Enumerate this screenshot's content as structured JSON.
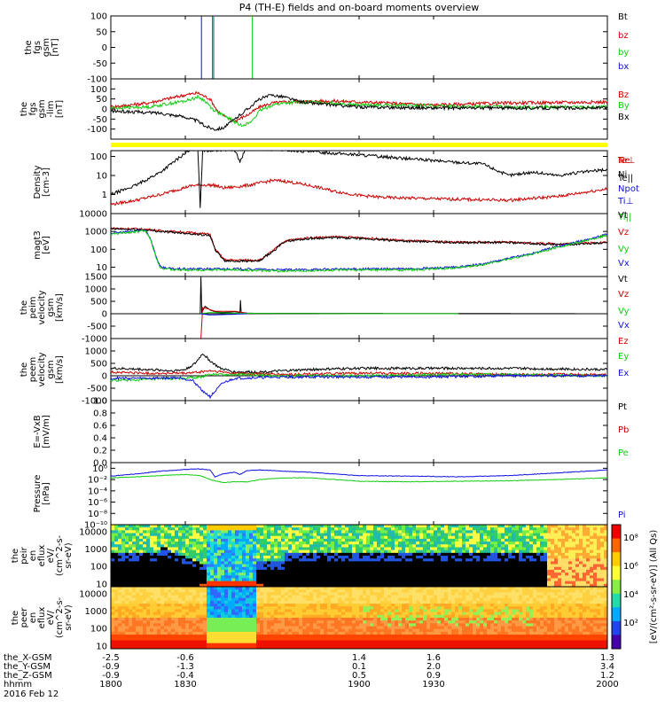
{
  "title": "P4 (TH-E) fields and on-board moments overview",
  "colors": {
    "black": "#000000",
    "red": "#cc0000",
    "green": "#11cc11",
    "blue": "#1010dd",
    "yellow": "#ffff00"
  },
  "chart_data": [
    {
      "type": "line",
      "panel": "fgs_gsm",
      "ylabel": [
        "the",
        "fgs",
        "gsm",
        "[nT]"
      ],
      "ylim": [
        -100,
        100
      ],
      "yticks": [
        "100",
        "50",
        "0",
        "-50",
        "-100"
      ],
      "series": [
        {
          "name": "Bt",
          "color": "#000000"
        },
        {
          "name": "bz",
          "color": "#cc0000"
        },
        {
          "name": "by",
          "color": "#11cc11"
        },
        {
          "name": "bx",
          "color": "#1010dd",
          "x": [
            1800,
            1836.5,
            1836.5,
            1838,
            1838,
            1840.5,
            1840.5,
            1841,
            1841
          ],
          "y": [
            -120,
            -120,
            120,
            120,
            120,
            120,
            120,
            120,
            -120
          ]
        }
      ],
      "extra_lines": [
        {
          "color": "#11cc11",
          "x": [
            1841.5,
            1841.5,
            1842
          ],
          "y": [
            120,
            -100,
            -120
          ]
        },
        {
          "color": "#11cc11",
          "x": [
            1857,
            1857,
            1857.5
          ],
          "y": [
            120,
            -100,
            -120
          ]
        }
      ]
    },
    {
      "type": "line",
      "panel": "fgs_gsm_lim",
      "ylabel": [
        "the",
        "fgs",
        "gsm",
        "-lim",
        "[nT]"
      ],
      "ylim": [
        -150,
        150
      ],
      "yticks": [
        "100",
        "50",
        "0",
        "-50",
        "-100"
      ],
      "series": [
        {
          "name": "Bz",
          "color": "#cc0000",
          "x": [
            1800,
            1815,
            1830,
            1835,
            1840,
            1843,
            1846,
            1850,
            1855,
            1860,
            1865,
            1870,
            1880,
            1890,
            1900,
            1930,
            1960,
            2000
          ],
          "y": [
            10,
            30,
            70,
            80,
            50,
            -10,
            -40,
            -60,
            -30,
            10,
            30,
            35,
            38,
            40,
            35,
            20,
            30,
            35
          ]
        },
        {
          "name": "By",
          "color": "#11cc11",
          "x": [
            1800,
            1815,
            1830,
            1835,
            1838,
            1841,
            1845,
            1848,
            1852,
            1856,
            1860,
            1865,
            1870,
            1880,
            1890,
            1900,
            1930,
            1960,
            2000
          ],
          "y": [
            5,
            10,
            40,
            60,
            40,
            0,
            -30,
            -50,
            -80,
            -70,
            -10,
            20,
            30,
            35,
            30,
            20,
            15,
            10,
            10
          ]
        },
        {
          "name": "Bx",
          "color": "#000000",
          "x": [
            1800,
            1810,
            1820,
            1830,
            1835,
            1838,
            1842,
            1845,
            1848,
            1852,
            1856,
            1860,
            1865,
            1870,
            1875,
            1880,
            1890,
            1900,
            1930,
            1960,
            2000
          ],
          "y": [
            -10,
            -15,
            -20,
            -40,
            -60,
            -85,
            -100,
            -95,
            -70,
            -30,
            10,
            50,
            70,
            60,
            40,
            30,
            20,
            10,
            5,
            5,
            5
          ]
        }
      ],
      "legend": [
        "Bz",
        "By",
        "Bx"
      ]
    },
    {
      "type": "line",
      "panel": "density",
      "ylabel": [
        "Density",
        "[cm-3]"
      ],
      "yscale": "log",
      "ylim": [
        0.1,
        200
      ],
      "yticks": [
        "100",
        "10",
        "1"
      ],
      "series": [
        {
          "name": "Ne",
          "color": "#cc0000",
          "x": [
            1800,
            1810,
            1820,
            1828,
            1833,
            1838,
            1842,
            1845,
            1850,
            1855,
            1860,
            1865,
            1870,
            1880,
            1890,
            1900,
            1910,
            1930,
            1960,
            1980,
            2000
          ],
          "y": [
            0.3,
            0.5,
            1,
            2,
            3,
            3.2,
            3,
            2.2,
            2.5,
            3,
            4,
            5.5,
            5,
            3,
            1.5,
            0.9,
            0.7,
            0.6,
            0.5,
            0.8,
            2
          ]
        },
        {
          "name": "Ni",
          "color": "#000000",
          "x": [
            1800,
            1810,
            1820,
            1826,
            1830,
            1834,
            1835,
            1836,
            1837,
            1838,
            1845,
            1848,
            1850,
            1852,
            1854,
            1855,
            1860,
            1880,
            1900,
            1930,
            1950,
            1960,
            1970,
            1980,
            1990,
            2000
          ],
          "y": [
            1,
            3,
            15,
            60,
            150,
            250,
            300,
            0.2,
            250,
            200,
            220,
            250,
            200,
            50,
            200,
            250,
            250,
            180,
            120,
            60,
            40,
            10,
            15,
            10,
            15,
            20
          ]
        },
        {
          "name": "Npot",
          "color": "#1010dd"
        }
      ]
    },
    {
      "type": "line",
      "panel": "temperature",
      "ylabel": [
        "magt3",
        "[eV]"
      ],
      "yscale": "log",
      "ylim": [
        3,
        10000
      ],
      "yticks": [
        "10000",
        "1000",
        "100",
        "10"
      ],
      "series": [
        {
          "name": "Te⊥",
          "color": "#cc0000",
          "x": [
            1800,
            1810,
            1815,
            1820,
            1830,
            1840,
            1842,
            1846,
            1855,
            1860,
            1866,
            1870,
            1880,
            1890,
            1900,
            1920,
            1940,
            1960,
            1980,
            2000
          ],
          "y": [
            1500,
            1400,
            1300,
            1100,
            900,
            700,
            100,
            25,
            25,
            25,
            100,
            300,
            450,
            500,
            450,
            300,
            250,
            250,
            200,
            250
          ]
        },
        {
          "name": "Te||",
          "color": "#000000",
          "x": [
            1800,
            1810,
            1815,
            1820,
            1830,
            1840,
            1842,
            1846,
            1855,
            1860,
            1866,
            1870,
            1880,
            1890,
            1900,
            1920,
            1940,
            1960,
            1980,
            2000
          ],
          "y": [
            1400,
            1300,
            1200,
            1000,
            800,
            600,
            90,
            22,
            22,
            22,
            90,
            280,
            400,
            450,
            400,
            280,
            240,
            240,
            180,
            230
          ]
        },
        {
          "name": "Ti⊥",
          "color": "#1010dd",
          "x": [
            1800,
            1808,
            1814,
            1816,
            1818,
            1820,
            1825,
            1850,
            1870,
            1900,
            1920,
            1940,
            1950,
            1960,
            1970,
            1980,
            1990,
            2000
          ],
          "y": [
            800,
            1000,
            1200,
            400,
            50,
            10,
            8,
            8,
            7,
            8,
            8,
            10,
            15,
            30,
            60,
            150,
            300,
            700
          ]
        },
        {
          "name": "Ti||",
          "color": "#11cc11",
          "x": [
            1800,
            1808,
            1814,
            1816,
            1818,
            1820,
            1825,
            1850,
            1870,
            1900,
            1920,
            1940,
            1950,
            1960,
            1970,
            1980,
            1990,
            2000
          ],
          "y": [
            700,
            900,
            1100,
            350,
            45,
            9,
            7,
            7,
            6,
            7,
            7,
            9,
            14,
            28,
            55,
            130,
            280,
            600
          ]
        }
      ]
    },
    {
      "type": "line",
      "panel": "peim_velocity",
      "ylabel": [
        "the",
        "peim",
        "velocity",
        "gsm",
        "[km/s]"
      ],
      "ylim": [
        -1000,
        1500
      ],
      "yticks": [
        "1500",
        "1000",
        "500",
        "0",
        "-500",
        "-1000"
      ],
      "series": [
        {
          "name": "Vt",
          "color": "#000000",
          "x": [
            1800,
            1836,
            1836.3,
            1836.6,
            1838,
            1840,
            1842,
            1845,
            1850,
            1852,
            1852.2,
            1852.5,
            1855,
            2000
          ],
          "y": [
            0,
            0,
            1500,
            50,
            300,
            150,
            80,
            50,
            80,
            50,
            550,
            50,
            20,
            0
          ]
        },
        {
          "name": "Vz",
          "color": "#cc0000",
          "x": [
            1836,
            1836.3,
            1837,
            1839,
            1842,
            1850,
            1855
          ],
          "y": [
            -1000,
            -1000,
            250,
            200,
            100,
            100,
            20
          ]
        },
        {
          "name": "Vy",
          "color": "#11cc11",
          "x": [
            1836,
            1840,
            1850,
            1870,
            1900,
            1940
          ],
          "y": [
            0,
            50,
            20,
            10,
            0,
            0
          ]
        },
        {
          "name": "Vx",
          "color": "#1010dd",
          "x": [
            1836,
            1840,
            1850,
            1855
          ],
          "y": [
            0,
            -50,
            -20,
            0
          ]
        }
      ]
    },
    {
      "type": "line",
      "panel": "peem_velocity",
      "ylabel": [
        "the",
        "peem",
        "velocity",
        "gsm",
        "[km/s]"
      ],
      "ylim": [
        -1000,
        1500
      ],
      "yticks": [
        "1000",
        "500",
        "0",
        "-500",
        "-1000"
      ],
      "series": [
        {
          "name": "Vt",
          "color": "#000000",
          "x": [
            1800,
            1815,
            1825,
            1830,
            1834,
            1837,
            1840,
            1844,
            1850,
            1860,
            1880,
            1900,
            1930,
            1960,
            2000
          ],
          "y": [
            300,
            250,
            200,
            250,
            500,
            900,
            600,
            300,
            150,
            150,
            250,
            300,
            300,
            300,
            250
          ]
        },
        {
          "name": "Vz",
          "color": "#cc0000",
          "x": [
            1800,
            1815,
            1830,
            1836,
            1840,
            1850,
            1870,
            1900,
            1930,
            1960,
            2000
          ],
          "y": [
            150,
            100,
            100,
            150,
            200,
            100,
            50,
            100,
            100,
            50,
            50
          ]
        },
        {
          "name": "Vy",
          "color": "#11cc11",
          "x": [
            1800,
            1815,
            1830,
            1836,
            1840,
            1850,
            1870,
            1900,
            1930,
            1960,
            2000
          ],
          "y": [
            -200,
            -150,
            -100,
            -50,
            50,
            50,
            0,
            0,
            50,
            50,
            0
          ]
        },
        {
          "name": "Vx",
          "color": "#1010dd",
          "x": [
            1800,
            1815,
            1828,
            1833,
            1837,
            1840,
            1845,
            1850,
            1870,
            1900,
            1930,
            1960,
            2000
          ],
          "y": [
            -100,
            -100,
            -80,
            -200,
            -600,
            -850,
            -300,
            -100,
            -50,
            -50,
            -50,
            0,
            0
          ]
        }
      ]
    },
    {
      "type": "line",
      "panel": "efield",
      "ylabel": [
        "E=-VxB",
        "[mV/m]"
      ],
      "ylim": [
        0,
        1.0
      ],
      "yticks": [
        "1.0",
        "0.8",
        "0.6",
        "0.4",
        "0.2",
        "0.0"
      ],
      "series": [
        {
          "name": "Ez",
          "color": "#cc0000"
        },
        {
          "name": "Ey",
          "color": "#11cc11"
        },
        {
          "name": "Ex",
          "color": "#1010dd"
        }
      ]
    },
    {
      "type": "line",
      "panel": "pressure",
      "ylabel": [
        "Pressure",
        "[nPa]"
      ],
      "yscale": "log",
      "ylim": [
        1e-10,
        10
      ],
      "yticks": [
        "10⁰",
        "10⁻²",
        "10⁻⁴",
        "10⁻⁶",
        "10⁻⁸",
        "10⁻¹⁰"
      ],
      "series": [
        {
          "name": "Pt",
          "color": "#000000"
        },
        {
          "name": "Pb",
          "color": "#cc0000"
        },
        {
          "name": "Pe",
          "color": "#11cc11",
          "x": [
            1800,
            1810,
            1820,
            1830,
            1836,
            1840,
            1845,
            1850,
            1855,
            1860,
            1870,
            1880,
            1890,
            1900,
            1920,
            1940,
            1960,
            1980,
            2000
          ],
          "y": [
            0.02,
            0.03,
            0.05,
            0.08,
            0.05,
            0.01,
            0.003,
            0.004,
            0.004,
            0.01,
            0.02,
            0.02,
            0.01,
            0.005,
            0.004,
            0.005,
            0.006,
            0.01,
            0.02
          ]
        },
        {
          "name": "Pi",
          "color": "#1010dd",
          "x": [
            1800,
            1810,
            1820,
            1830,
            1835,
            1840,
            1842,
            1845,
            1850,
            1852,
            1855,
            1860,
            1870,
            1880,
            1890,
            1900,
            1920,
            1940,
            1960,
            1980,
            2000
          ],
          "y": [
            0.04,
            0.1,
            0.3,
            0.6,
            0.8,
            0.5,
            0.03,
            0.1,
            0.2,
            0.08,
            0.4,
            0.5,
            0.3,
            0.2,
            0.1,
            0.05,
            0.04,
            0.03,
            0.05,
            0.15,
            0.5
          ]
        }
      ]
    },
    {
      "type": "heatmap",
      "panel": "peir_en_eflux",
      "ylabel": [
        "the",
        "peir",
        "en",
        "eflux",
        "eV/",
        "(cm^2-s-",
        "sr-eV)"
      ],
      "yscale": "log",
      "ylim": [
        7,
        25000
      ],
      "yticks": [
        "10000",
        "1000",
        "100",
        "10"
      ]
    },
    {
      "type": "heatmap",
      "panel": "peer_en_eflux",
      "ylabel": [
        "the",
        "peer",
        "en",
        "eflux",
        "eV/",
        "(cm^2-s-",
        "sr-eV)"
      ],
      "yscale": "log",
      "ylim": [
        7,
        25000
      ],
      "yticks": [
        "10000",
        "1000",
        "100",
        "10"
      ]
    }
  ],
  "colorbar": {
    "label": "[eV/(cm²-s-sr-eV)] (All Qs)",
    "ticks": [
      "10⁸",
      "10⁶",
      "10⁴",
      "10²"
    ]
  },
  "xaxis": {
    "row_labels": [
      "the_X-GSM",
      "the_Y-GSM",
      "the_Z-GSM",
      "hhmm"
    ],
    "date": "2016 Feb 12",
    "ticks": [
      {
        "t": 1800,
        "x": "-2.5",
        "y": "-0.9",
        "z": "-0.9",
        "hhmm": "1800"
      },
      {
        "t": 1830,
        "x": "-0.6",
        "y": "-1.3",
        "z": "-0.4",
        "hhmm": "1830"
      },
      {
        "t": 1900,
        "x": "1.4",
        "y": "0.1",
        "z": "0.5",
        "hhmm": "1900"
      },
      {
        "t": 1930,
        "x": "1.6",
        "y": "2.0",
        "z": "0.9",
        "hhmm": "1930"
      },
      {
        "t": 2000,
        "x": "1.3",
        "y": "3.4",
        "z": "1.2",
        "hhmm": "2000"
      }
    ]
  }
}
